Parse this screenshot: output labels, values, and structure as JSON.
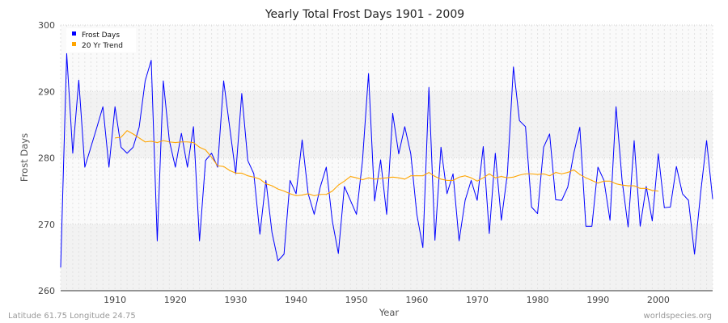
{
  "chart_data": {
    "type": "line",
    "title": "Yearly Total Frost Days 1901 - 2009",
    "xlabel": "Year",
    "ylabel": "Frost Days",
    "xlim": [
      1901,
      2009
    ],
    "ylim": [
      260,
      300
    ],
    "x_ticks": [
      1910,
      1920,
      1930,
      1940,
      1950,
      1960,
      1970,
      1980,
      1990,
      2000
    ],
    "y_ticks": [
      260,
      270,
      280,
      290,
      300
    ],
    "grid": true,
    "legend_position": "top-left",
    "series": [
      {
        "name": "Frost Days",
        "color": "#0000ff",
        "x": [
          1901,
          1902,
          1903,
          1904,
          1905,
          1906,
          1907,
          1908,
          1909,
          1910,
          1911,
          1912,
          1913,
          1914,
          1915,
          1916,
          1917,
          1918,
          1919,
          1920,
          1921,
          1922,
          1923,
          1924,
          1925,
          1926,
          1927,
          1928,
          1929,
          1930,
          1931,
          1932,
          1933,
          1934,
          1935,
          1936,
          1937,
          1938,
          1939,
          1940,
          1941,
          1942,
          1943,
          1944,
          1945,
          1946,
          1947,
          1948,
          1949,
          1950,
          1951,
          1952,
          1953,
          1954,
          1955,
          1956,
          1957,
          1958,
          1959,
          1960,
          1961,
          1962,
          1963,
          1964,
          1965,
          1966,
          1967,
          1968,
          1969,
          1970,
          1971,
          1972,
          1973,
          1974,
          1975,
          1976,
          1977,
          1978,
          1979,
          1980,
          1981,
          1982,
          1983,
          1984,
          1985,
          1986,
          1987,
          1988,
          1989,
          1990,
          1991,
          1992,
          1993,
          1994,
          1995,
          1996,
          1997,
          1998,
          1999,
          2000,
          2001,
          2002,
          2003,
          2004,
          2005,
          2006,
          2007,
          2008,
          2009
        ],
        "values": [
          263.5,
          295.7,
          280.7,
          291.7,
          278.6,
          281.6,
          284.6,
          287.7,
          278.6,
          287.7,
          281.6,
          280.7,
          281.6,
          284.6,
          291.6,
          294.7,
          267.5,
          291.6,
          282.6,
          278.6,
          283.7,
          278.6,
          284.7,
          267.5,
          279.6,
          280.7,
          278.6,
          291.6,
          284.6,
          277.6,
          289.7,
          279.6,
          277.6,
          268.5,
          276.6,
          268.8,
          264.5,
          265.5,
          276.6,
          274.6,
          282.7,
          274.6,
          271.5,
          275.6,
          278.6,
          270.5,
          265.6,
          275.7,
          273.6,
          271.5,
          279.6,
          292.7,
          273.5,
          279.7,
          271.5,
          286.7,
          280.6,
          284.7,
          280.6,
          271.5,
          266.5,
          290.6,
          267.6,
          281.6,
          274.6,
          277.6,
          267.5,
          273.6,
          276.6,
          273.6,
          281.7,
          268.6,
          280.7,
          270.6,
          277.6,
          293.7,
          285.6,
          284.7,
          272.6,
          271.6,
          281.6,
          283.6,
          273.7,
          273.6,
          275.6,
          280.7,
          284.6,
          269.7,
          269.7,
          278.6,
          276.6,
          270.6,
          287.7,
          276.6,
          269.6,
          282.6,
          269.7,
          275.7,
          270.5,
          280.6,
          272.5,
          272.6,
          278.7,
          274.6,
          273.6,
          265.5,
          274.6,
          282.6,
          273.8
        ]
      },
      {
        "name": "20 Yr Trend",
        "color": "#ffa500",
        "x": [
          1910,
          1911,
          1912,
          1913,
          1914,
          1915,
          1916,
          1917,
          1918,
          1919,
          1920,
          1921,
          1922,
          1923,
          1924,
          1925,
          1926,
          1927,
          1928,
          1929,
          1930,
          1931,
          1932,
          1933,
          1934,
          1935,
          1936,
          1937,
          1938,
          1939,
          1940,
          1941,
          1942,
          1943,
          1944,
          1945,
          1946,
          1947,
          1948,
          1949,
          1950,
          1951,
          1952,
          1953,
          1954,
          1955,
          1956,
          1957,
          1958,
          1959,
          1960,
          1961,
          1962,
          1963,
          1964,
          1965,
          1966,
          1967,
          1968,
          1969,
          1970,
          1971,
          1972,
          1973,
          1974,
          1975,
          1976,
          1977,
          1978,
          1979,
          1980,
          1981,
          1982,
          1983,
          1984,
          1985,
          1986,
          1987,
          1988,
          1989,
          1990,
          1991,
          1992,
          1993,
          1994,
          1995,
          1996,
          1997,
          1998,
          1999,
          2000
        ],
        "values": [
          283.0,
          283.1,
          284.1,
          283.6,
          283.0,
          282.4,
          282.5,
          282.3,
          282.6,
          282.4,
          282.3,
          282.4,
          282.4,
          282.3,
          281.6,
          281.2,
          280.1,
          278.8,
          278.7,
          278.1,
          277.7,
          277.7,
          277.3,
          277.1,
          276.8,
          276.1,
          275.8,
          275.3,
          275.0,
          274.6,
          274.3,
          274.4,
          274.6,
          274.3,
          274.5,
          274.5,
          275.0,
          275.9,
          276.5,
          277.2,
          277.0,
          276.7,
          277.0,
          276.8,
          276.9,
          277.0,
          277.1,
          277.0,
          276.8,
          277.3,
          277.3,
          277.3,
          277.8,
          277.2,
          276.8,
          276.6,
          276.6,
          277.1,
          277.3,
          277.0,
          276.5,
          277.0,
          277.6,
          277.0,
          277.2,
          277.0,
          277.1,
          277.4,
          277.6,
          277.6,
          277.5,
          277.6,
          277.3,
          277.8,
          277.6,
          277.8,
          278.2,
          277.5,
          277.0,
          276.6,
          276.2,
          276.5,
          276.5,
          276.1,
          275.9,
          275.8,
          275.8,
          275.4,
          275.4,
          275.1,
          275.0
        ]
      }
    ]
  },
  "footer": {
    "location": "Latitude 61.75 Longitude 24.75",
    "source": "worldspecies.org"
  }
}
